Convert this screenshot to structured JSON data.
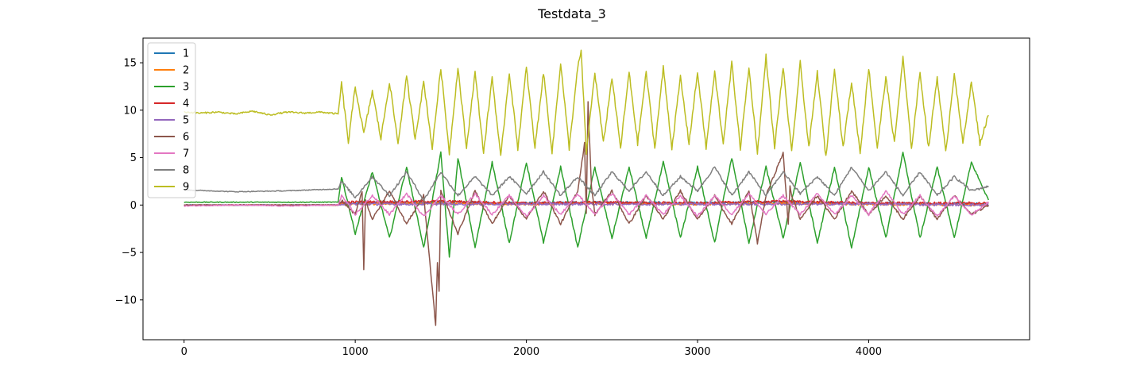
{
  "chart_data": {
    "type": "line",
    "title": "Testdata_3",
    "xlabel": "",
    "ylabel": "",
    "xlim": [
      -240,
      4940
    ],
    "ylim": [
      -14.2,
      17.6
    ],
    "x_ticks": [
      0,
      1000,
      2000,
      3000,
      4000
    ],
    "y_ticks": [
      -10,
      -5,
      0,
      5,
      10,
      15
    ],
    "grid": false,
    "legend": "top-left",
    "x_range": [
      0,
      4700
    ],
    "series": [
      {
        "name": "1",
        "color": "#1f77b4",
        "x": [
          0,
          900,
          920,
          1500,
          2000,
          2400,
          3000,
          3500,
          4000,
          4700
        ],
        "y": [
          0.0,
          0.0,
          0.2,
          0.3,
          0.2,
          0.3,
          0.2,
          0.3,
          0.2,
          0.1
        ]
      },
      {
        "name": "2",
        "color": "#ff7f0e",
        "x": [
          0,
          900,
          920,
          1500,
          2000,
          2400,
          3000,
          3500,
          4000,
          4700
        ],
        "y": [
          0.0,
          0.0,
          0.1,
          0.2,
          0.1,
          0.2,
          0.1,
          0.2,
          0.1,
          0.0
        ]
      },
      {
        "name": "3",
        "color": "#2ca02c",
        "x": [
          0,
          500,
          900,
          920,
          1000,
          1100,
          1200,
          1300,
          1400,
          1500,
          1550,
          1600,
          1700,
          1800,
          1900,
          2000,
          2100,
          2200,
          2300,
          2400,
          2500,
          2600,
          2700,
          2800,
          2900,
          3000,
          3100,
          3200,
          3300,
          3400,
          3500,
          3600,
          3700,
          3800,
          3900,
          4000,
          4100,
          4200,
          4300,
          4400,
          4500,
          4600,
          4700
        ],
        "y": [
          0.3,
          0.3,
          0.3,
          3.0,
          -3.0,
          3.5,
          -3.5,
          4.0,
          -4.5,
          5.5,
          -5.5,
          5.0,
          -4.5,
          4.5,
          -4.0,
          4.5,
          -4.0,
          4.0,
          -4.5,
          4.0,
          -3.5,
          4.0,
          -3.5,
          4.5,
          -3.5,
          4.0,
          -4.0,
          5.0,
          -4.0,
          4.0,
          -3.5,
          4.5,
          -4.0,
          4.0,
          -4.5,
          4.0,
          -3.5,
          5.5,
          -3.5,
          4.0,
          -3.5,
          4.5,
          0.5
        ]
      },
      {
        "name": "4",
        "color": "#d62728",
        "x": [
          0,
          900,
          920,
          1500,
          2000,
          2400,
          3000,
          3500,
          4000,
          4700
        ],
        "y": [
          0.0,
          0.0,
          0.3,
          0.4,
          0.2,
          0.3,
          0.2,
          0.4,
          0.2,
          0.2
        ]
      },
      {
        "name": "5",
        "color": "#9467bd",
        "x": [
          0,
          900,
          920,
          1500,
          2000,
          2400,
          3000,
          3500,
          4000,
          4700
        ],
        "y": [
          0.0,
          0.0,
          0.1,
          0.1,
          0.1,
          0.1,
          0.1,
          0.1,
          0.1,
          0.0
        ]
      },
      {
        "name": "6",
        "color": "#8c564b",
        "x": [
          0,
          900,
          920,
          1000,
          1040,
          1050,
          1060,
          1100,
          1200,
          1300,
          1400,
          1470,
          1480,
          1490,
          1500,
          1600,
          1700,
          1800,
          1900,
          2000,
          2100,
          2200,
          2300,
          2340,
          2350,
          2360,
          2380,
          2400,
          2500,
          2600,
          2700,
          2800,
          2900,
          3000,
          3100,
          3200,
          3300,
          3350,
          3400,
          3500,
          3530,
          3540,
          3550,
          3600,
          3700,
          3800,
          3900,
          4000,
          4100,
          4200,
          4300,
          4400,
          4500,
          4600,
          4700
        ],
        "y": [
          0.0,
          0.0,
          0.5,
          -1.0,
          1.5,
          -6.7,
          0.5,
          -1.5,
          1.5,
          -2.0,
          1.0,
          -12.7,
          -6.0,
          -9.0,
          1.5,
          -3.0,
          1.5,
          -2.0,
          1.0,
          -1.5,
          1.5,
          -2.0,
          1.5,
          6.5,
          -1.0,
          11.0,
          2.0,
          -1.0,
          1.5,
          -2.0,
          1.0,
          -1.5,
          1.5,
          -1.5,
          1.0,
          -2.0,
          1.5,
          -4.0,
          1.0,
          5.5,
          -2.0,
          2.0,
          1.0,
          -1.5,
          1.0,
          -1.5,
          1.5,
          -1.0,
          1.0,
          -1.5,
          1.0,
          -1.5,
          1.0,
          -1.0,
          0.0
        ]
      },
      {
        "name": "7",
        "color": "#e377c2",
        "x": [
          0,
          300,
          600,
          900,
          920,
          1000,
          1100,
          1200,
          1300,
          1400,
          1500,
          1600,
          1700,
          1800,
          1900,
          2000,
          2100,
          2200,
          2300,
          2400,
          2500,
          2600,
          2700,
          2800,
          2900,
          3000,
          3100,
          3200,
          3300,
          3400,
          3500,
          3600,
          3700,
          3800,
          3900,
          4000,
          4100,
          4200,
          4300,
          4400,
          4500,
          4600,
          4700
        ],
        "y": [
          -0.1,
          0.0,
          -0.1,
          0.0,
          1.0,
          -1.0,
          1.0,
          -1.0,
          1.2,
          -1.2,
          1.0,
          -1.0,
          1.2,
          -1.0,
          1.0,
          -1.2,
          1.0,
          -1.0,
          1.2,
          -1.0,
          1.2,
          -1.0,
          1.0,
          -1.0,
          1.0,
          -1.2,
          1.0,
          -1.0,
          1.2,
          -1.0,
          1.0,
          -1.0,
          1.2,
          -1.0,
          1.0,
          -1.0,
          1.5,
          -1.0,
          1.0,
          -1.2,
          1.0,
          -1.0,
          0.3
        ]
      },
      {
        "name": "8",
        "color": "#7f7f7f",
        "x": [
          0,
          300,
          600,
          900,
          920,
          1000,
          1100,
          1200,
          1300,
          1400,
          1500,
          1600,
          1700,
          1800,
          1900,
          2000,
          2100,
          2200,
          2300,
          2400,
          2500,
          2600,
          2700,
          2800,
          2900,
          3000,
          3100,
          3200,
          3300,
          3400,
          3500,
          3600,
          3700,
          3800,
          3900,
          4000,
          4100,
          4200,
          4300,
          4400,
          4500,
          4600,
          4700
        ],
        "y": [
          1.6,
          1.4,
          1.5,
          1.7,
          2.5,
          0.8,
          3.0,
          1.0,
          3.5,
          0.5,
          3.5,
          1.0,
          3.0,
          1.0,
          3.0,
          1.2,
          3.5,
          1.0,
          3.0,
          1.0,
          3.5,
          1.5,
          3.5,
          1.0,
          3.0,
          1.5,
          4.0,
          1.0,
          3.5,
          1.0,
          3.5,
          1.2,
          3.0,
          1.0,
          4.0,
          1.5,
          3.5,
          1.0,
          3.5,
          1.0,
          3.0,
          1.5,
          2.0
        ]
      },
      {
        "name": "9",
        "color": "#bcbd22",
        "x": [
          0,
          100,
          200,
          300,
          400,
          500,
          600,
          700,
          800,
          900,
          920,
          960,
          1000,
          1050,
          1100,
          1150,
          1200,
          1250,
          1300,
          1350,
          1400,
          1450,
          1500,
          1550,
          1600,
          1650,
          1700,
          1750,
          1800,
          1850,
          1900,
          1950,
          2000,
          2050,
          2100,
          2150,
          2200,
          2250,
          2300,
          2320,
          2350,
          2400,
          2450,
          2500,
          2550,
          2600,
          2650,
          2700,
          2750,
          2800,
          2850,
          2900,
          2950,
          3000,
          3050,
          3100,
          3150,
          3200,
          3250,
          3300,
          3350,
          3400,
          3450,
          3500,
          3550,
          3600,
          3650,
          3700,
          3750,
          3800,
          3850,
          3900,
          3950,
          4000,
          4050,
          4100,
          4150,
          4200,
          4250,
          4300,
          4350,
          4400,
          4450,
          4500,
          4550,
          4600,
          4650,
          4700
        ],
        "y": [
          9.8,
          9.7,
          9.8,
          9.6,
          9.9,
          9.5,
          9.8,
          9.7,
          9.8,
          9.6,
          12.8,
          6.6,
          12.5,
          7.5,
          12.0,
          7.0,
          13.0,
          6.5,
          13.5,
          7.0,
          13.0,
          6.0,
          14.5,
          5.5,
          14.5,
          6.0,
          14.0,
          5.5,
          13.5,
          5.0,
          14.0,
          6.0,
          14.5,
          6.0,
          14.0,
          5.5,
          15.0,
          6.0,
          14.5,
          16.2,
          5.5,
          14.0,
          6.5,
          13.5,
          6.0,
          14.0,
          6.5,
          14.0,
          6.0,
          14.5,
          6.0,
          13.5,
          6.5,
          14.0,
          6.0,
          14.0,
          6.5,
          15.0,
          6.0,
          14.5,
          5.5,
          15.7,
          6.0,
          14.5,
          5.5,
          15.0,
          6.0,
          14.0,
          5.0,
          14.5,
          6.0,
          13.0,
          5.5,
          14.5,
          6.0,
          13.5,
          6.5,
          15.5,
          6.0,
          14.0,
          6.0,
          13.5,
          5.5,
          14.0,
          6.5,
          13.0,
          6.5,
          9.5
        ]
      }
    ]
  }
}
